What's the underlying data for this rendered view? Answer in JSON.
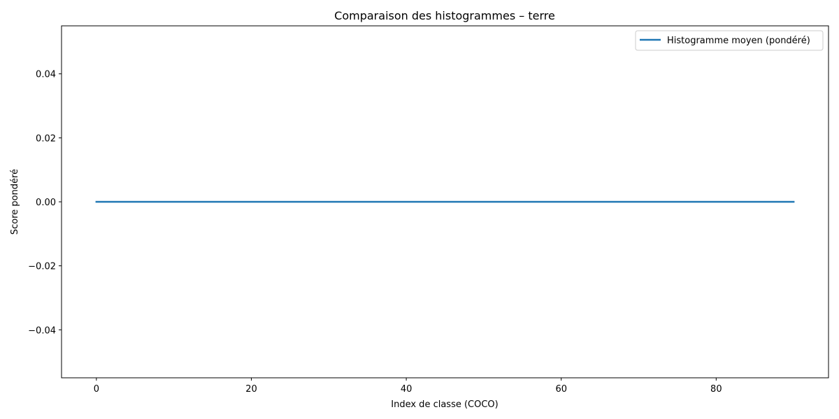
{
  "chart_data": {
    "type": "line",
    "title": "Comparaison des histogrammes – terre",
    "xlabel": "Index de classe (COCO)",
    "ylabel": "Score pondéré",
    "xlim": [
      -4.5,
      94.5
    ],
    "ylim": [
      -0.055,
      0.055
    ],
    "x_ticks": [
      0,
      20,
      40,
      60,
      80
    ],
    "x_tick_labels": [
      "0",
      "20",
      "40",
      "60",
      "80"
    ],
    "y_ticks": [
      -0.04,
      -0.02,
      0.0,
      0.02,
      0.04
    ],
    "y_tick_labels": [
      "−0.04",
      "−0.02",
      "0.00",
      "0.02",
      "0.04"
    ],
    "grid": false,
    "legend_position": "top-right",
    "series": [
      {
        "name": "Histogramme moyen (pondéré)",
        "color": "#1f77b4",
        "x": [
          0,
          90
        ],
        "values": [
          0,
          0
        ]
      }
    ]
  }
}
